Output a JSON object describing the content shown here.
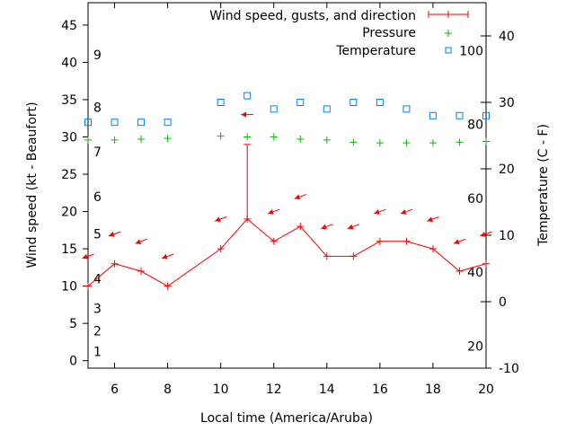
{
  "chart_data": {
    "type": "line",
    "xlabel": "Local time (America/Aruba)",
    "ylabel": "Wind speed (kt - Beaufort)",
    "y2label": "Temperature (C - F)",
    "xlim": [
      5,
      20
    ],
    "ylim": [
      -1,
      48
    ],
    "y2lim": [
      -10,
      45
    ],
    "x_ticks": [
      6,
      8,
      10,
      12,
      14,
      16,
      18,
      20
    ],
    "y_ticks": [
      0,
      5,
      10,
      15,
      20,
      25,
      30,
      35,
      40,
      45
    ],
    "y2_ticks": [
      -10,
      0,
      10,
      20,
      30,
      40
    ],
    "beaufort_labels": [
      {
        "label": "1",
        "kt": 1.2
      },
      {
        "label": "2",
        "kt": 4
      },
      {
        "label": "3",
        "kt": 7
      },
      {
        "label": "4",
        "kt": 11
      },
      {
        "label": "5",
        "kt": 17
      },
      {
        "label": "6",
        "kt": 22
      },
      {
        "label": "7",
        "kt": 28
      },
      {
        "label": "8",
        "kt": 34
      },
      {
        "label": "9",
        "kt": 41
      }
    ],
    "fahrenheit_labels": [
      {
        "label": "20",
        "f": 20
      },
      {
        "label": "40",
        "f": 40
      },
      {
        "label": "60",
        "f": 60
      },
      {
        "label": "80",
        "f": 80
      },
      {
        "label": "100",
        "f": 100
      }
    ],
    "legend": {
      "placement": "top-right",
      "entries": [
        "Wind speed, gusts, and direction",
        "Pressure",
        "Temperature"
      ]
    },
    "colors": {
      "wind": "#ff0000",
      "pressure": "#00c000",
      "temperature": "#0080ff"
    },
    "series": [
      {
        "name": "Wind speed, gusts, and direction",
        "x": [
          5,
          6,
          7,
          8,
          10,
          11,
          12,
          13,
          14,
          15,
          16,
          17,
          18,
          19,
          20
        ],
        "speed_kt": [
          10,
          13,
          12,
          10,
          15,
          19,
          16,
          18,
          14,
          14,
          16,
          16,
          15,
          12,
          13
        ],
        "gust_kt": [
          null,
          null,
          null,
          null,
          null,
          29,
          null,
          null,
          null,
          null,
          null,
          null,
          null,
          null,
          null
        ],
        "arrow_kt": [
          14,
          17,
          16,
          14,
          19,
          33,
          20,
          22,
          18,
          18,
          20,
          20,
          19,
          16,
          17
        ],
        "direction_deg": [
          70,
          70,
          70,
          70,
          70,
          90,
          70,
          70,
          70,
          70,
          70,
          70,
          70,
          70,
          70
        ]
      },
      {
        "name": "Pressure",
        "x": [
          5,
          6,
          7,
          8,
          10,
          11,
          12,
          13,
          14,
          15,
          16,
          17,
          18,
          19,
          20
        ],
        "plot_y_kt_scale": [
          29.6,
          29.6,
          29.7,
          29.8,
          30.1,
          30.0,
          30.0,
          29.7,
          29.6,
          29.3,
          29.2,
          29.2,
          29.2,
          29.3,
          29.4
        ]
      },
      {
        "name": "Temperature",
        "x": [
          5,
          6,
          7,
          8,
          10,
          11,
          12,
          13,
          14,
          15,
          16,
          17,
          18,
          19,
          20
        ],
        "temp_c": [
          27,
          27,
          27,
          27,
          30,
          31,
          29,
          30,
          29,
          30,
          30,
          29,
          28,
          28,
          28
        ]
      }
    ]
  }
}
